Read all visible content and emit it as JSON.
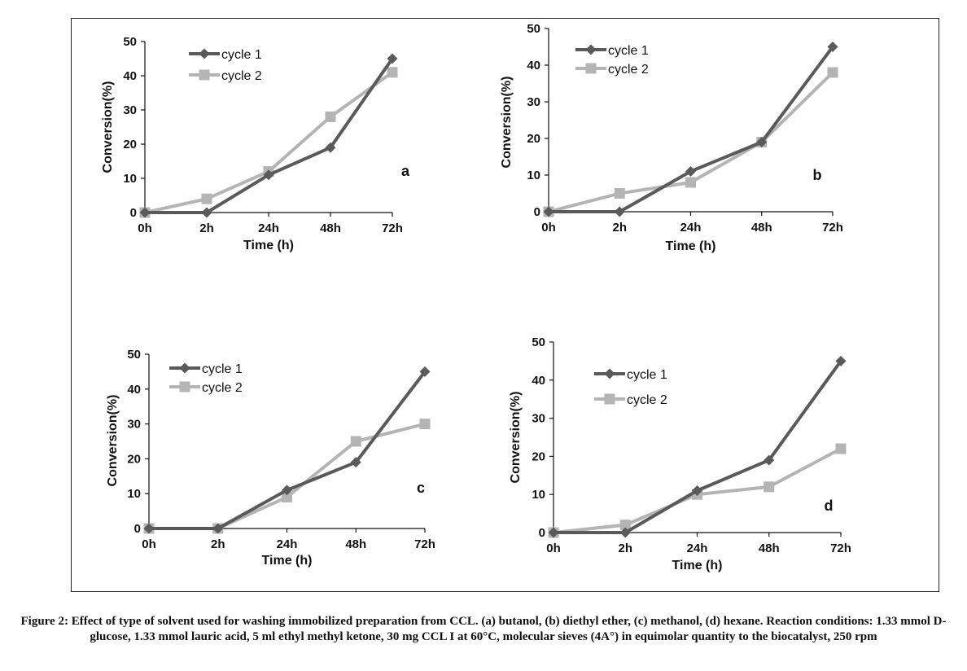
{
  "caption": "Figure 2: Effect of type of solvent used for washing immobilized preparation from CCL. (a) butanol, (b) diethyl ether, (c) methanol, (d) hexane. Reaction conditions: 1.33 mmol D-glucose, 1.33 mmol lauric acid, 5 ml ethyl methyl ketone, 30 mg CCL I at 60°C, molecular sieves (4A°) in equimolar quantity to the biocatalyst, 250 rpm",
  "colors": {
    "cycle1": "#5a5a5a",
    "cycle2": "#b4b4b4",
    "axis": "#111111"
  },
  "chart_data": [
    {
      "type": "line",
      "panel_label": "a",
      "categories": [
        "0h",
        "2h",
        "24h",
        "48h",
        "72h"
      ],
      "xlabel": "Time (h)",
      "ylabel": "Conversion(%)",
      "ylim": [
        0,
        50
      ],
      "yticks": [
        0,
        10,
        20,
        30,
        40,
        50
      ],
      "grid": false,
      "legend_position": "top-left",
      "series": [
        {
          "name": "cycle 1",
          "marker": "diamond",
          "values": [
            0,
            0,
            11,
            19,
            45
          ]
        },
        {
          "name": "cycle 2",
          "marker": "square",
          "values": [
            0,
            4,
            12,
            28,
            41
          ]
        }
      ]
    },
    {
      "type": "line",
      "panel_label": "b",
      "categories": [
        "0h",
        "2h",
        "24h",
        "48h",
        "72h"
      ],
      "xlabel": "Time (h)",
      "ylabel": "Conversion(%)",
      "ylim": [
        0,
        50
      ],
      "yticks": [
        0,
        10,
        20,
        30,
        40,
        50
      ],
      "grid": false,
      "legend_position": "top-left",
      "series": [
        {
          "name": "cycle 1",
          "marker": "diamond",
          "values": [
            0,
            0,
            11,
            19,
            45
          ]
        },
        {
          "name": "cycle 2",
          "marker": "square",
          "values": [
            0,
            5,
            8,
            19,
            38
          ]
        }
      ]
    },
    {
      "type": "line",
      "panel_label": "c",
      "categories": [
        "0h",
        "2h",
        "24h",
        "48h",
        "72h"
      ],
      "xlabel": "Time (h)",
      "ylabel": "Conversion(%)",
      "ylim": [
        0,
        50
      ],
      "yticks": [
        0,
        10,
        20,
        30,
        40,
        50
      ],
      "grid": false,
      "legend_position": "top-left",
      "series": [
        {
          "name": "cycle 1",
          "marker": "diamond",
          "values": [
            0,
            0,
            11,
            19,
            45
          ]
        },
        {
          "name": "cycle 2",
          "marker": "square",
          "values": [
            0,
            0,
            9,
            25,
            30
          ]
        }
      ]
    },
    {
      "type": "line",
      "panel_label": "d",
      "categories": [
        "0h",
        "2h",
        "24h",
        "48h",
        "72h"
      ],
      "xlabel": "Time (h)",
      "ylabel": "Conversion(%)",
      "ylim": [
        0,
        50
      ],
      "yticks": [
        0,
        10,
        20,
        30,
        40,
        50
      ],
      "grid": false,
      "legend_position": "top-left",
      "series": [
        {
          "name": "cycle 1",
          "marker": "diamond",
          "values": [
            0,
            0,
            11,
            19,
            45
          ]
        },
        {
          "name": "cycle 2",
          "marker": "square",
          "values": [
            0,
            2,
            10,
            12,
            22
          ]
        }
      ]
    }
  ]
}
